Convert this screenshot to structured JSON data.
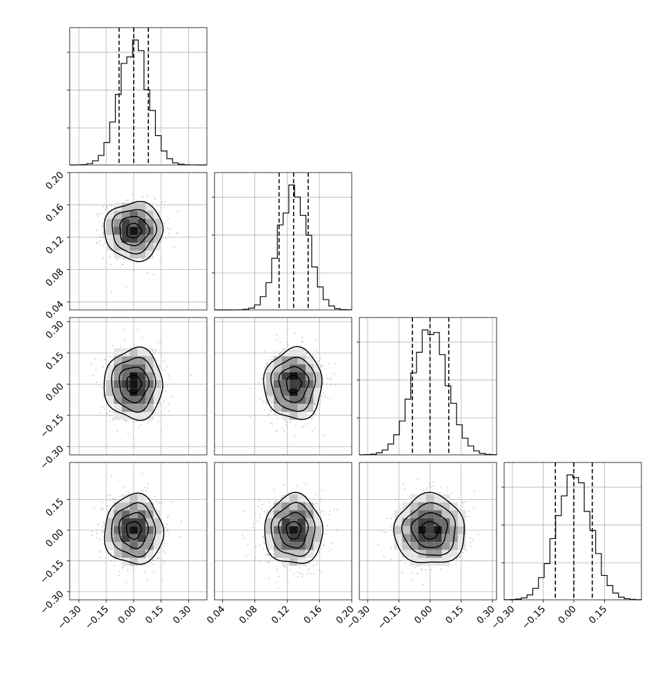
{
  "chart_data": {
    "type": "corner",
    "parameter_count": 4,
    "grid": true,
    "parameters": [
      {
        "mean": 0.0,
        "std": 0.08,
        "range": [
          -0.35,
          0.4
        ],
        "quantiles": [
          -0.08,
          0.0,
          0.08
        ],
        "ticks": [
          -0.3,
          -0.15,
          0.0,
          0.15,
          0.3
        ],
        "tick_labels": [
          "−0.30",
          "−0.15",
          "0.00",
          "0.15",
          "0.30"
        ]
      },
      {
        "mean": 0.128,
        "std": 0.018,
        "range": [
          0.03,
          0.2
        ],
        "quantiles": [
          0.11,
          0.128,
          0.146
        ],
        "ticks": [
          0.04,
          0.08,
          0.12,
          0.16,
          0.2
        ],
        "tick_labels": [
          "0.04",
          "0.08",
          "0.12",
          "0.16",
          "0.20"
        ]
      },
      {
        "mean": 0.0,
        "std": 0.085,
        "range": [
          -0.34,
          0.32
        ],
        "quantiles": [
          -0.085,
          0.0,
          0.09
        ],
        "ticks": [
          -0.3,
          -0.15,
          0.0,
          0.15,
          0.3
        ],
        "tick_labels": [
          "−0.30",
          "−0.15",
          "0.00",
          "0.15",
          "0.30"
        ]
      },
      {
        "mean": 0.0,
        "std": 0.085,
        "range": [
          -0.34,
          0.33
        ],
        "quantiles": [
          -0.09,
          0.0,
          0.09
        ],
        "ticks": [
          -0.3,
          -0.15,
          0.0,
          0.15
        ],
        "tick_labels": [
          "−0.30",
          "−0.15",
          "0.00",
          "0.15"
        ]
      }
    ],
    "row_y_ticks": {
      "1": [
        0.04,
        0.08,
        0.12,
        0.16,
        0.2
      ],
      "2": [
        -0.3,
        -0.15,
        0.0,
        0.15,
        0.3
      ],
      "3": [
        -0.3,
        -0.15,
        0.0,
        0.15
      ]
    },
    "row_y_tick_labels": {
      "1": [
        "0.04",
        "0.08",
        "0.12",
        "0.16",
        "0.20"
      ],
      "2": [
        "−0.30",
        "−0.15",
        "0.00",
        "0.15",
        "0.30"
      ],
      "3": [
        "−0.30",
        "−0.15",
        "0.00",
        "0.15"
      ]
    },
    "hist_bins": 24,
    "contour_levels_sigma": [
      0.5,
      1.0,
      1.5,
      2.0
    ]
  }
}
